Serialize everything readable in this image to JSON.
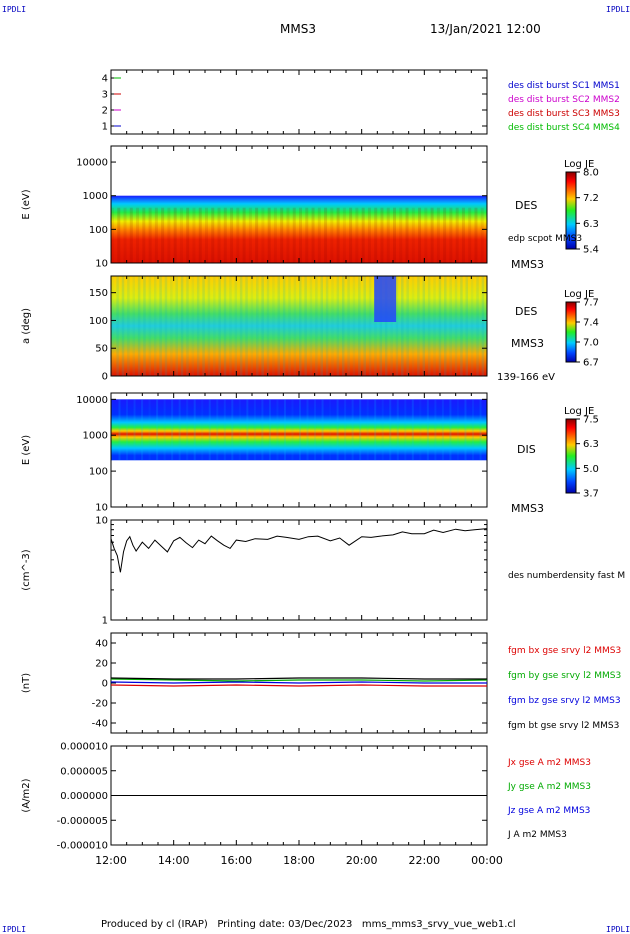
{
  "corners": {
    "tl": "IPDLI",
    "tr": "IPDLI",
    "bl": "IPDLI",
    "br": "IPDLI"
  },
  "header": {
    "spacecraft": "MMS3",
    "datetime": "13/Jan/2021 12:00"
  },
  "footer": "Produced by cl (IRAP)   Printing date: 03/Dec/2023   mms_mms3_srvy_vue_web1.cl",
  "colors": {
    "c1": "#0000cc",
    "c2": "#cc00cc",
    "c3": "#cc0000",
    "c4": "#00bb00",
    "bx": "#dd0000",
    "by": "#00aa00",
    "bz": "#0000dd",
    "bt": "#000000"
  },
  "chart_data": [
    {
      "type": "line",
      "panel": "spacecraft",
      "ylabel": "",
      "yticks": [
        "1",
        "2",
        "3",
        "4"
      ],
      "ylim": [
        0.5,
        4.5
      ],
      "legend": [
        "des dist burst SC1 MMS1",
        "des dist burst SC2 MMS2",
        "des dist burst SC3 MMS3",
        "des dist burst SC4 MMS4"
      ]
    },
    {
      "type": "heatmap",
      "panel": "des-energy",
      "ylabel": "E (eV)",
      "yscale": "log",
      "ylim": [
        10,
        30000
      ],
      "yticks": [
        "10",
        "100",
        "1000",
        "10000"
      ],
      "label": "DES",
      "sublabel": "MMS3",
      "overlay": "edp scpot MMS3",
      "colorbar": {
        "title": "Log JE",
        "ticks": [
          "8.0",
          "7.2",
          "6.3",
          "5.4"
        ],
        "range": [
          5.4,
          8.0
        ]
      }
    },
    {
      "type": "heatmap",
      "panel": "des-pitch",
      "ylabel": "a (deg)",
      "ylim": [
        0,
        180
      ],
      "yticks": [
        "0",
        "50",
        "100",
        "150"
      ],
      "label": "DES",
      "sublabel": "MMS3",
      "energy": "139-166 eV",
      "colorbar": {
        "title": "Log JE",
        "ticks": [
          "7.7",
          "7.4",
          "7.0",
          "6.7"
        ],
        "range": [
          6.7,
          7.7
        ]
      }
    },
    {
      "type": "heatmap",
      "panel": "dis-energy",
      "ylabel": "E (eV)",
      "yscale": "log",
      "ylim": [
        10,
        15000
      ],
      "yticks": [
        "10",
        "100",
        "1000",
        "10000"
      ],
      "label": "DIS",
      "sublabel": "MMS3",
      "colorbar": {
        "title": "Log JE",
        "ticks": [
          "7.5",
          "6.3",
          "5.0",
          "3.7"
        ],
        "range": [
          3.7,
          7.5
        ]
      }
    },
    {
      "type": "line",
      "panel": "density",
      "ylabel": "(cm^-3)",
      "yscale": "log",
      "ylim": [
        1,
        10
      ],
      "yticks": [
        "1",
        "10"
      ],
      "series": [
        {
          "name": "des numberdensity fast M",
          "x": [
            0,
            0.1,
            0.2,
            0.3,
            0.4,
            0.5,
            0.6,
            0.7,
            0.8,
            1.0,
            1.2,
            1.4,
            1.6,
            1.8,
            2.0,
            2.2,
            2.4,
            2.6,
            2.8,
            3.0,
            3.2,
            3.4,
            3.6,
            3.8,
            4.0,
            4.3,
            4.6,
            5.0,
            5.3,
            5.6,
            6.0,
            6.3,
            6.6,
            7.0,
            7.3,
            7.6,
            8.0,
            8.3,
            8.6,
            9.0,
            9.3,
            9.6,
            10.0,
            10.3,
            10.6,
            11.0,
            11.3,
            11.6,
            12.0
          ],
          "y": [
            6.5,
            5.2,
            4.4,
            3.0,
            4.8,
            6.2,
            6.8,
            5.6,
            4.9,
            6.0,
            5.2,
            6.3,
            5.5,
            4.8,
            6.2,
            6.7,
            5.9,
            5.3,
            6.3,
            5.8,
            6.9,
            6.2,
            5.6,
            5.2,
            6.3,
            6.1,
            6.5,
            6.4,
            6.9,
            6.7,
            6.4,
            6.8,
            6.9,
            6.2,
            6.6,
            5.6,
            6.8,
            6.7,
            6.9,
            7.1,
            7.6,
            7.3,
            7.3,
            7.9,
            7.5,
            8.1,
            7.8,
            8.0,
            8.2
          ]
        }
      ]
    },
    {
      "type": "line",
      "panel": "magnetic-field",
      "ylabel": "(nT)",
      "ylim": [
        -50,
        50
      ],
      "yticks": [
        "-40",
        "-20",
        "0",
        "20",
        "40"
      ],
      "series": [
        {
          "name": "fgm bx gse srvy l2 MMS3",
          "x": [
            0,
            2,
            4,
            6,
            8,
            10,
            12
          ],
          "y": [
            -2,
            -3,
            -2,
            -3,
            -2,
            -3,
            -3
          ]
        },
        {
          "name": "fgm by gse srvy l2 MMS3",
          "x": [
            0,
            2,
            4,
            6,
            8,
            10,
            12
          ],
          "y": [
            4,
            3,
            2,
            3,
            3,
            2,
            3
          ]
        },
        {
          "name": "fgm bz gse srvy l2 MMS3",
          "x": [
            0,
            2,
            4,
            6,
            8,
            10,
            12
          ],
          "y": [
            1,
            0,
            1,
            0,
            1,
            0,
            0
          ]
        },
        {
          "name": "fgm bt gse srvy l2 MMS3",
          "x": [
            0,
            2,
            4,
            6,
            8,
            10,
            12
          ],
          "y": [
            5,
            4,
            4,
            5,
            5,
            4,
            4
          ]
        }
      ]
    },
    {
      "type": "line",
      "panel": "current",
      "ylabel": "(A/m2)",
      "ylim": [
        -1e-05,
        1e-05
      ],
      "yticks": [
        "-0.000010",
        "-0.000005",
        "0.000000",
        "0.000005",
        "0.000010"
      ],
      "series": [
        {
          "name": "Jx gse A m2 MMS3",
          "x": [
            0,
            12
          ],
          "y": [
            0,
            0
          ]
        },
        {
          "name": "Jy gse A m2 MMS3",
          "x": [
            0,
            12
          ],
          "y": [
            0,
            0
          ]
        },
        {
          "name": "Jz gse A m2 MMS3",
          "x": [
            0,
            12
          ],
          "y": [
            0,
            0
          ]
        },
        {
          "name": "J A m2 MMS3",
          "x": [
            0,
            12
          ],
          "y": [
            0,
            0
          ]
        }
      ]
    }
  ],
  "xaxis": {
    "ticks": [
      "12:00",
      "14:00",
      "16:00",
      "18:00",
      "20:00",
      "22:00",
      "00:00"
    ],
    "range": [
      0,
      12
    ]
  }
}
